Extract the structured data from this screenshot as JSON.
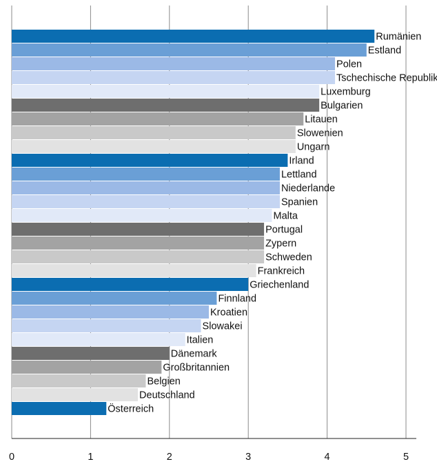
{
  "chart_data": {
    "type": "bar",
    "orientation": "horizontal",
    "title": "",
    "xlabel": "",
    "ylabel": "",
    "xlim": [
      0,
      5.15
    ],
    "xticks": [
      "0",
      "1",
      "2",
      "3",
      "4",
      "5"
    ],
    "grid": "vertical",
    "legend": "none",
    "categories": [
      "Rumänien",
      "Estland",
      "Polen",
      "Tschechische Republik",
      "Luxemburg",
      "Bulgarien",
      "Litauen",
      "Slowenien",
      "Ungarn",
      "Irland",
      "Lettland",
      "Niederlande",
      "Spanien",
      "Malta",
      "Portugal",
      "Zypern",
      "Schweden",
      "Frankreich",
      "Griechenland",
      "Finnland",
      "Kroatien",
      "Slowakei",
      "Italien",
      "Dänemark",
      "Großbritannien",
      "Belgien",
      "Deutschland",
      "Österreich"
    ],
    "values": [
      4.6,
      4.5,
      4.1,
      4.1,
      3.9,
      3.9,
      3.7,
      3.6,
      3.6,
      3.5,
      3.4,
      3.4,
      3.4,
      3.3,
      3.2,
      3.2,
      3.2,
      3.1,
      3.0,
      2.6,
      2.5,
      2.4,
      2.2,
      2.0,
      1.9,
      1.7,
      1.6,
      1.2
    ],
    "colors": [
      "#0b6db1",
      "#6a9fd6",
      "#9bb9e6",
      "#c5d5f2",
      "#e1e9f8",
      "#6e6e6e",
      "#a3a3a3",
      "#c9c9c9",
      "#e2e2e2"
    ]
  }
}
